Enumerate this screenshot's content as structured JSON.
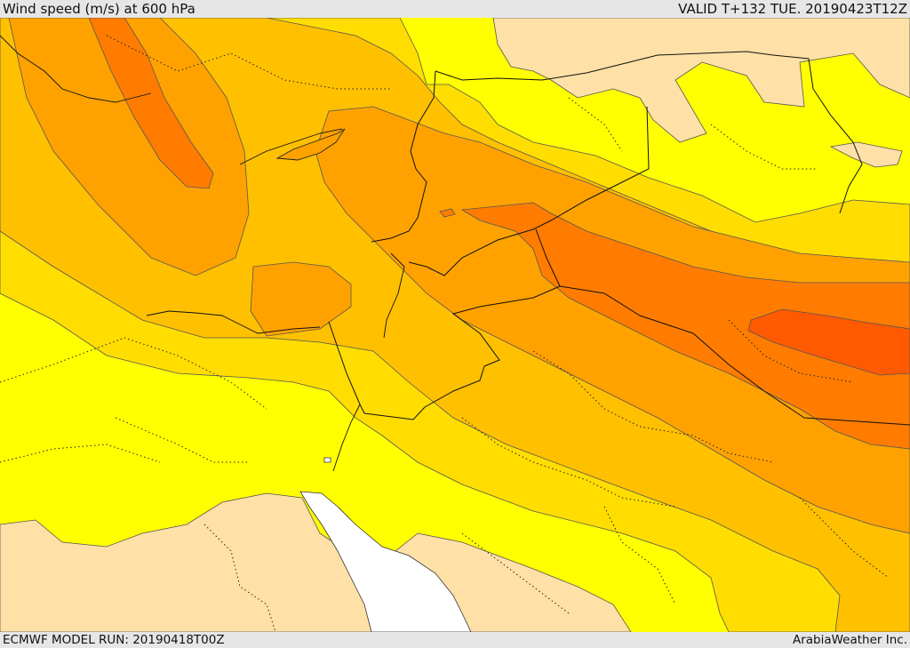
{
  "header": {
    "title": "Wind speed (m/s) at 600 hPa",
    "valid": "VALID T+132 TUE. 20190423T12Z"
  },
  "footer": {
    "model_run": "ECMWF MODEL RUN: 20190418T00Z",
    "provider": "ArabiaWeather Inc."
  },
  "colors": {
    "lightest": "#ffe0a6",
    "yellow": "#ffff00",
    "gold": "#ffdd00",
    "amber": "#ffc000",
    "orange": "#ffa200",
    "dark_orange": "#ff7c00",
    "red_orange": "#ff5a00",
    "sea": "#ffffff",
    "lines": "#222222"
  }
}
